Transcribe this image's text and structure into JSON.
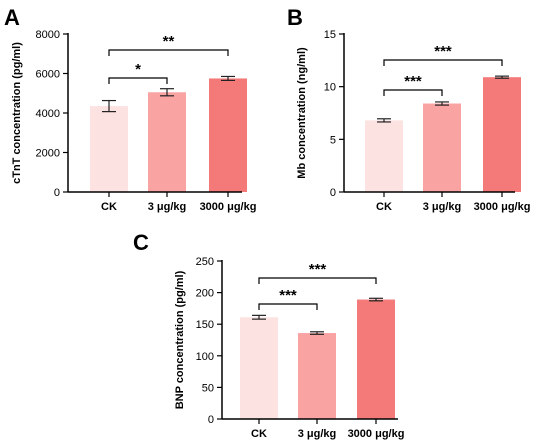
{
  "colors": [
    "#fde2e2",
    "#f9a3a3",
    "#f47a7a"
  ],
  "chart_data": [
    {
      "panel": "A",
      "type": "bar",
      "ylabel": "cTnT concentration (pg/ml)",
      "categories": [
        "CK",
        "3 μg/kg",
        "3000 μg/kg"
      ],
      "values": [
        4350,
        5050,
        5750
      ],
      "errors": [
        280,
        180,
        100
      ],
      "ylim": [
        0,
        8000
      ],
      "yticks": [
        0,
        2000,
        4000,
        6000,
        8000
      ],
      "significance": [
        {
          "from": 0,
          "to": 1,
          "label": "*"
        },
        {
          "from": 0,
          "to": 2,
          "label": "**"
        }
      ]
    },
    {
      "panel": "B",
      "type": "bar",
      "ylabel": "Mb concentration (ng/ml)",
      "categories": [
        "CK",
        "3 μg/kg",
        "3000 μg/kg"
      ],
      "values": [
        6.8,
        8.4,
        10.9
      ],
      "errors": [
        0.15,
        0.15,
        0.1
      ],
      "ylim": [
        0,
        15
      ],
      "yticks": [
        0,
        5,
        10,
        15
      ],
      "significance": [
        {
          "from": 0,
          "to": 1,
          "label": "***"
        },
        {
          "from": 0,
          "to": 2,
          "label": "***"
        }
      ]
    },
    {
      "panel": "C",
      "type": "bar",
      "ylabel": "BNP concentration (pg/ml)",
      "categories": [
        "CK",
        "3 μg/kg",
        "3000 μg/kg"
      ],
      "values": [
        161,
        136,
        189
      ],
      "errors": [
        3,
        2,
        2
      ],
      "ylim": [
        0,
        250
      ],
      "yticks": [
        0,
        50,
        100,
        150,
        200,
        250
      ],
      "significance": [
        {
          "from": 0,
          "to": 1,
          "label": "***"
        },
        {
          "from": 0,
          "to": 2,
          "label": "***"
        }
      ]
    }
  ]
}
